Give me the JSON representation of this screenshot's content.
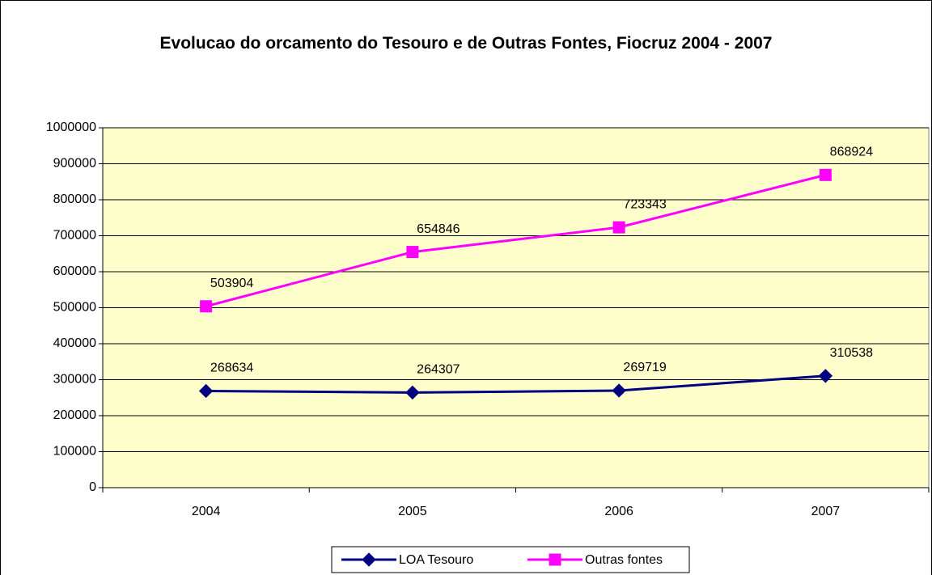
{
  "chart_data": {
    "type": "line",
    "title": "Evolucao do orcamento do Tesouro e de Outras Fontes, Fiocruz 2004 - 2007",
    "categories": [
      "2004",
      "2005",
      "2006",
      "2007"
    ],
    "series": [
      {
        "name": "LOA Tesouro",
        "color": "#000080",
        "marker": "diamond",
        "values": [
          268634,
          264307,
          269719,
          310538
        ]
      },
      {
        "name": "Outras fontes",
        "color": "#ff00ff",
        "marker": "square",
        "values": [
          503904,
          654846,
          723343,
          868924
        ]
      }
    ],
    "ylim": [
      0,
      1000000
    ],
    "yticks": [
      0,
      100000,
      200000,
      300000,
      400000,
      500000,
      600000,
      700000,
      800000,
      900000,
      1000000
    ],
    "grid": true,
    "legend": "bottom",
    "plot_background": "#ffffcc"
  }
}
